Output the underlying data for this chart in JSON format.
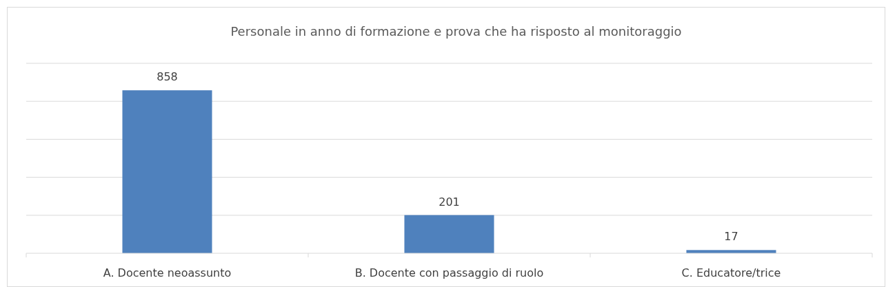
{
  "chart_data": {
    "type": "bar",
    "title": "Personale in anno di formazione e prova che ha risposto al monitoraggio",
    "categories": [
      "A. Docente neoassunto",
      "B. Docente con passaggio di ruolo",
      "C. Educatore/trice"
    ],
    "values": [
      858,
      201,
      17
    ],
    "color": "#4f81bd",
    "ylim": [
      0,
      1000
    ],
    "yticks": [
      {
        "value": 0,
        "label": null
      },
      {
        "value": 200,
        "label": null
      },
      {
        "value": 400,
        "label": null
      },
      {
        "value": 600,
        "label": null
      },
      {
        "value": 800,
        "label": null
      },
      {
        "value": 1000,
        "label": null
      }
    ],
    "grid": "y",
    "data_labels": true,
    "tick_labels": "x"
  }
}
